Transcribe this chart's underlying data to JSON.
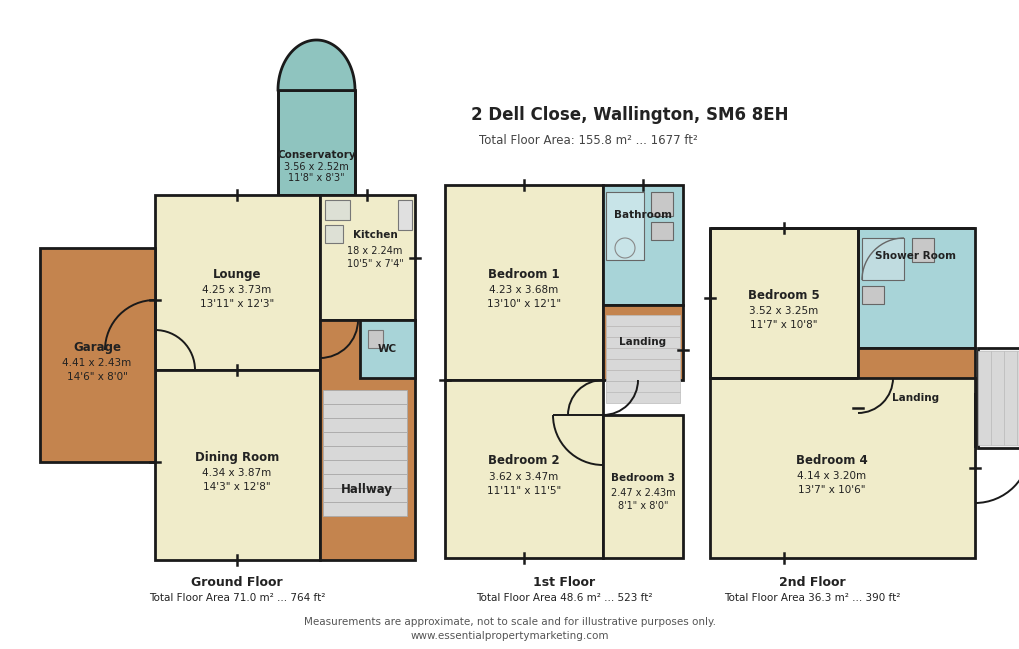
{
  "title": "2 Dell Close, Wallington, SM6 8EH",
  "total_area": "Total Floor Area: 155.8 m² ... 1677 ft²",
  "bg_color": "#ffffff",
  "wall_color": "#1a1a1a",
  "room_yellow": "#f0ecca",
  "room_blue": "#a8d4d8",
  "room_brown": "#c4844e",
  "room_green": "#8fc4bf",
  "stair_gray": "#d8d8d8",
  "fixture_gray": "#c8c8c8",
  "footer_line1": "Measurements are approximate, not to scale and for illustrative purposes only.",
  "footer_line2": "www.essentialpropertymarketing.com",
  "ground_floor_label": "Ground Floor",
  "ground_floor_area": "Total Floor Area 71.0 m² ... 764 ft²",
  "first_floor_label": "1st Floor",
  "first_floor_area": "Total Floor Area 48.6 m² ... 523 ft²",
  "second_floor_label": "2nd Floor",
  "second_floor_area": "Total Floor Area 36.3 m² ... 390 ft²"
}
